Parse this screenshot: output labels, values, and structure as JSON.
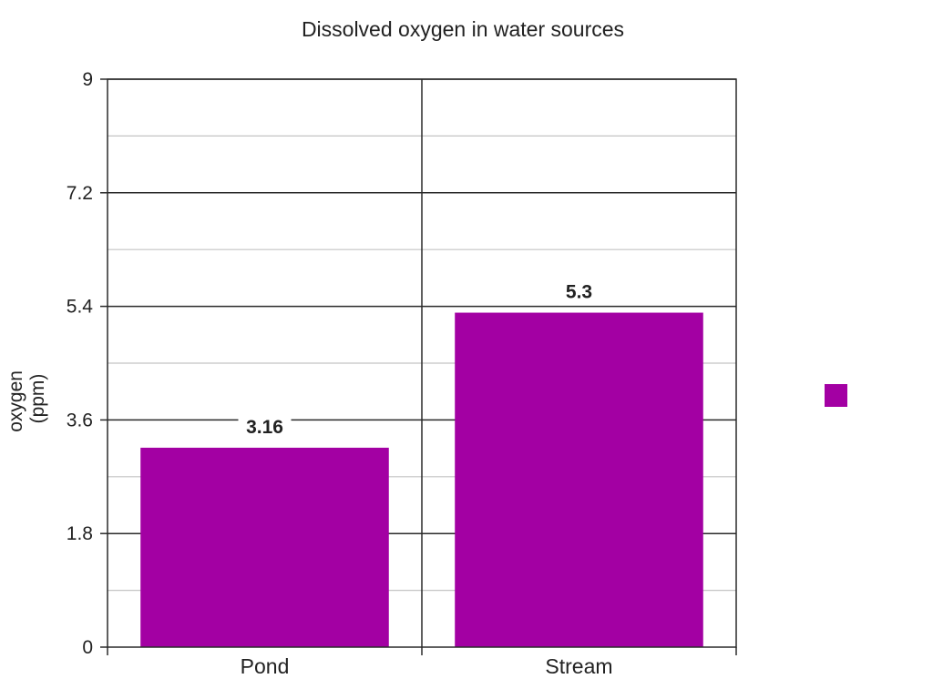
{
  "chart_data": {
    "type": "bar",
    "title": "Dissolved oxygen in water sources",
    "ylabel": "oxygen (ppm)",
    "ylabel_lines": [
      "oxygen",
      "(ppm)"
    ],
    "categories": [
      "Pond",
      "Stream"
    ],
    "series": [
      {
        "values": [
          3.16,
          5.3
        ]
      }
    ],
    "value_labels": [
      "3.16",
      "5.3"
    ],
    "ylim": [
      0,
      9
    ],
    "yticks": [
      0,
      1.8,
      3.6,
      5.4,
      7.2,
      9
    ],
    "ytick_labels": [
      "0",
      "1.8",
      "3.6",
      "5.4",
      "7.2",
      "9"
    ],
    "grid": true,
    "legend": "right",
    "bar_color": "#a300a3"
  }
}
